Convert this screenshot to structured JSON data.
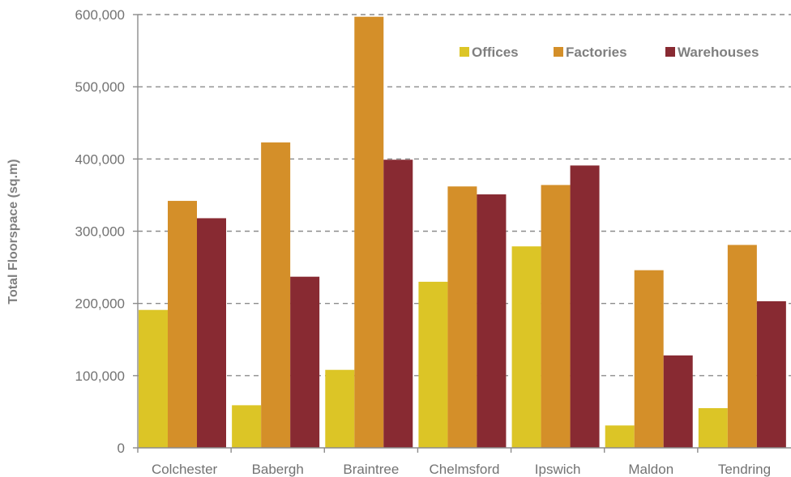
{
  "chart_data": {
    "type": "bar",
    "title": "",
    "xlabel": "",
    "ylabel": "Total Floorspace (sq.m)",
    "ylim": [
      0,
      600000
    ],
    "yticks": [
      0,
      100000,
      200000,
      300000,
      400000,
      500000,
      600000
    ],
    "ytick_labels": [
      "0",
      "100,000",
      "200,000",
      "300,000",
      "400,000",
      "500,000",
      "600,000"
    ],
    "grid": true,
    "legend_position": "top-right",
    "categories": [
      "Colchester",
      "Babergh",
      "Braintree",
      "Chelmsford",
      "Ipswich",
      "Maldon",
      "Tendring"
    ],
    "series": [
      {
        "name": "Offices",
        "color": "#dcc526",
        "values": [
          191000,
          59000,
          108000,
          230000,
          279000,
          31000,
          55000
        ]
      },
      {
        "name": "Factories",
        "color": "#d48f29",
        "values": [
          342000,
          423000,
          597000,
          362000,
          364000,
          246000,
          281000
        ]
      },
      {
        "name": "Warehouses",
        "color": "#882a32",
        "values": [
          318000,
          237000,
          399000,
          351000,
          391000,
          128000,
          203000
        ]
      }
    ]
  }
}
